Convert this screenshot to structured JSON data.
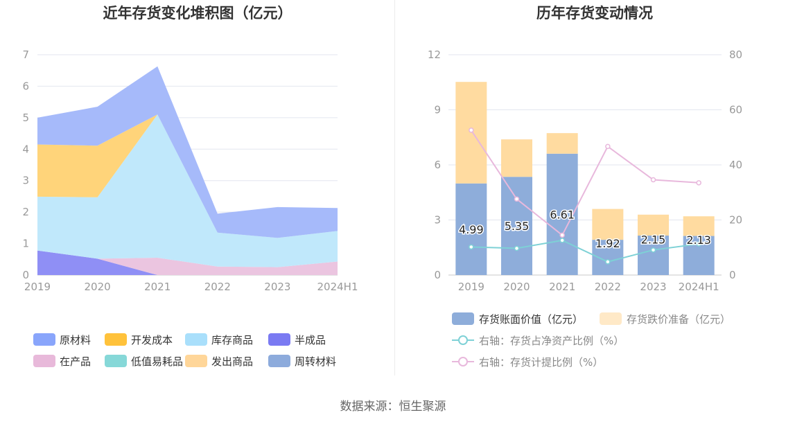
{
  "footer": {
    "source": "数据来源：恒生聚源"
  },
  "chart_data": [
    {
      "type": "area",
      "stacked": true,
      "title": "近年存货变化堆积图（亿元）",
      "categories": [
        "2019",
        "2020",
        "2021",
        "2022",
        "2023",
        "2024H1"
      ],
      "ylim": [
        0,
        7
      ],
      "yticks": [
        "0",
        "1",
        "2",
        "3",
        "4",
        "5",
        "6",
        "7"
      ],
      "grid": true,
      "legend_position": "bottom",
      "series": [
        {
          "name": "半成品",
          "color": "#8f8ff5",
          "values": [
            0.78,
            0.52,
            0.0,
            0.0,
            0.0,
            0.0
          ]
        },
        {
          "name": "在产品",
          "color": "#ebc5e0",
          "values": [
            0.0,
            0.0,
            0.55,
            0.27,
            0.25,
            0.43
          ]
        },
        {
          "name": "库存商品",
          "color": "#c0e8fb",
          "values": [
            1.71,
            1.95,
            4.55,
            1.08,
            0.93,
            0.97
          ]
        },
        {
          "name": "开发成本",
          "color": "#ffd47a",
          "values": [
            1.66,
            1.64,
            0.0,
            0.0,
            0.0,
            0.0
          ]
        },
        {
          "name": "原材料",
          "color": "#a6bafa",
          "values": [
            0.85,
            1.24,
            1.53,
            0.6,
            0.98,
            0.73
          ]
        }
      ],
      "legend": [
        {
          "name": "原材料",
          "color": "#89a5fb"
        },
        {
          "name": "开发成本",
          "color": "#ffc23b"
        },
        {
          "name": "库存商品",
          "color": "#a9dffb"
        },
        {
          "name": "半成品",
          "color": "#7a7af2"
        },
        {
          "name": "在产品",
          "color": "#e8b9da"
        },
        {
          "name": "低值易耗品",
          "color": "#86d8d8"
        },
        {
          "name": "发出商品",
          "color": "#ffd699"
        },
        {
          "name": "周转材料",
          "color": "#8dabdc"
        }
      ]
    },
    {
      "type": "bar",
      "stacked": true,
      "title": "历年存货变动情况",
      "categories": [
        "2019",
        "2020",
        "2021",
        "2022",
        "2023",
        "2024H1"
      ],
      "ylim": [
        0,
        12
      ],
      "yticks": [
        "0",
        "3",
        "6",
        "9",
        "12"
      ],
      "y2lim": [
        0,
        80
      ],
      "y2ticks": [
        "0",
        "20",
        "40",
        "60",
        "80"
      ],
      "grid": true,
      "legend_position": "bottom",
      "series": [
        {
          "name": "存货账面价值（亿元）",
          "color": "#8eadda",
          "values": [
            4.99,
            5.35,
            6.61,
            1.92,
            2.15,
            2.13
          ],
          "labels": [
            "4.99",
            "5.35",
            "6.61",
            "1.92",
            "2.15",
            "2.13"
          ]
        },
        {
          "name": "存货跌价准备（亿元）",
          "color": "#ffdba0",
          "legend_color": "#ffe9c7",
          "values": [
            5.53,
            2.04,
            1.12,
            1.68,
            1.14,
            1.07
          ]
        }
      ],
      "line_series": [
        {
          "name": "右轴：存货占净资产比例（%）",
          "color": "#7ed1d6",
          "values": [
            10.2,
            9.7,
            12.6,
            4.8,
            9.1,
            11.3
          ]
        },
        {
          "name": "右轴：存货计提比例（%）",
          "color": "#e8b8dc",
          "values": [
            52.6,
            27.6,
            14.5,
            46.7,
            34.6,
            33.5
          ]
        }
      ]
    }
  ]
}
